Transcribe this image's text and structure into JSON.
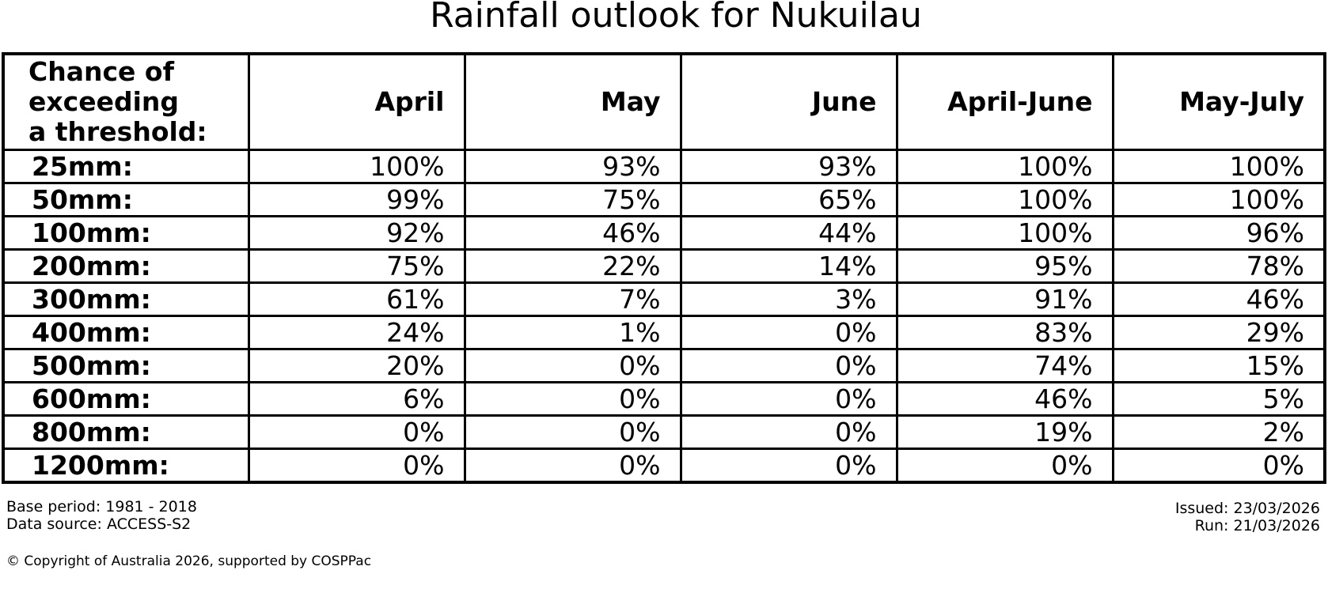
{
  "title": "Rainfall outlook for Nukuilau",
  "chart_data": {
    "type": "table",
    "title": "Rainfall outlook for Nukuilau",
    "row_label_header": "Chance of\nexceeding\na threshold:",
    "columns": [
      "April",
      "May",
      "June",
      "April-June",
      "May-July"
    ],
    "unit": "%",
    "rows": [
      {
        "threshold": "25mm:",
        "values": [
          100,
          93,
          93,
          100,
          100
        ]
      },
      {
        "threshold": "50mm:",
        "values": [
          99,
          75,
          65,
          100,
          100
        ]
      },
      {
        "threshold": "100mm:",
        "values": [
          92,
          46,
          44,
          100,
          96
        ]
      },
      {
        "threshold": "200mm:",
        "values": [
          75,
          22,
          14,
          95,
          78
        ]
      },
      {
        "threshold": "300mm:",
        "values": [
          61,
          7,
          3,
          91,
          46
        ]
      },
      {
        "threshold": "400mm:",
        "values": [
          24,
          1,
          0,
          83,
          29
        ]
      },
      {
        "threshold": "500mm:",
        "values": [
          20,
          0,
          0,
          74,
          15
        ]
      },
      {
        "threshold": "600mm:",
        "values": [
          6,
          0,
          0,
          46,
          5
        ]
      },
      {
        "threshold": "800mm:",
        "values": [
          0,
          0,
          0,
          19,
          2
        ]
      },
      {
        "threshold": "1200mm:",
        "values": [
          0,
          0,
          0,
          0,
          0
        ]
      }
    ]
  },
  "footer": {
    "base_period": "Base period: 1981 - 2018",
    "data_source": "Data source: ACCESS-S2",
    "issued": "Issued: 23/03/2026",
    "run": "Run: 21/03/2026",
    "copyright": "© Copyright of Australia 2026, supported by COSPPac"
  }
}
